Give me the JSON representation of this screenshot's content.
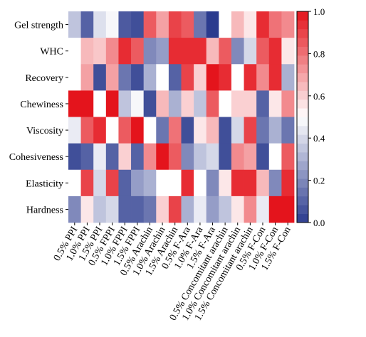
{
  "chart_data": {
    "type": "heatmap",
    "rows": [
      "Gel strength",
      "WHC",
      "Recovery",
      "Chewiness",
      "Viscosity",
      "Cohesiveness",
      "Elasticity",
      "Hardness"
    ],
    "columns": [
      "0.5% PPI",
      "1.0% PPI",
      "1.5% PPI",
      "0.5% FPPI",
      "1.0% FPPI",
      "1.5% FPPI",
      "0.5% Arachin",
      "1.0% Arachin",
      "1.5% Arachin",
      "0.5% F-Ara",
      "1.0% F-Ara",
      "1.5% F-Ara",
      "0.5% Concomitant arachin",
      "1.0% Concomitant arachin",
      "1.5% Concomitant arachin",
      "0.5% F-Con",
      "1.0% F-Con",
      "1.5% F-Con"
    ],
    "values": [
      [
        0.35,
        0.1,
        0.42,
        0.48,
        0.08,
        0.05,
        0.85,
        0.7,
        0.9,
        0.85,
        0.15,
        0.0,
        0.5,
        0.65,
        0.55,
        0.95,
        0.8,
        0.75
      ],
      [
        0.5,
        0.65,
        0.62,
        0.75,
        0.95,
        0.85,
        0.2,
        0.25,
        0.95,
        0.95,
        0.95,
        0.65,
        0.85,
        0.2,
        0.4,
        0.85,
        0.95,
        0.55
      ],
      [
        0.5,
        0.7,
        0.05,
        0.7,
        0.15,
        0.05,
        0.3,
        0.5,
        0.1,
        0.9,
        0.6,
        1.0,
        0.95,
        0.5,
        0.95,
        0.75,
        0.95,
        0.3
      ],
      [
        1.0,
        1.0,
        0.5,
        1.0,
        0.35,
        0.48,
        0.05,
        0.65,
        0.3,
        0.6,
        0.35,
        0.85,
        0.5,
        0.6,
        0.6,
        0.1,
        0.55,
        0.75
      ],
      [
        0.45,
        0.85,
        0.95,
        0.5,
        0.85,
        1.0,
        0.5,
        0.15,
        0.8,
        0.05,
        0.55,
        0.65,
        0.05,
        0.4,
        0.9,
        0.15,
        0.3,
        0.15
      ],
      [
        0.05,
        0.1,
        0.45,
        0.1,
        0.6,
        0.1,
        0.75,
        1.0,
        0.85,
        0.2,
        0.35,
        0.4,
        0.05,
        0.75,
        0.7,
        0.05,
        0.5,
        0.85
      ],
      [
        0.5,
        0.9,
        0.4,
        0.9,
        0.1,
        0.25,
        0.3,
        0.5,
        0.5,
        0.95,
        0.5,
        0.2,
        0.55,
        0.95,
        0.95,
        0.65,
        0.2,
        0.95
      ],
      [
        0.2,
        0.55,
        0.35,
        0.4,
        0.1,
        0.1,
        0.15,
        0.6,
        0.9,
        0.3,
        0.45,
        0.25,
        0.35,
        0.55,
        0.75,
        0.45,
        1.0,
        1.0
      ]
    ],
    "colorbar": {
      "range": [
        0.0,
        1.0
      ],
      "ticks": [
        "0.0",
        "0.2",
        "0.4",
        "0.6",
        "0.8",
        "1.0"
      ],
      "colors": [
        "#2b3b8e",
        "#ffffff",
        "#e4141c"
      ]
    },
    "title": "",
    "xlabel": "",
    "ylabel": "",
    "grid": false
  }
}
